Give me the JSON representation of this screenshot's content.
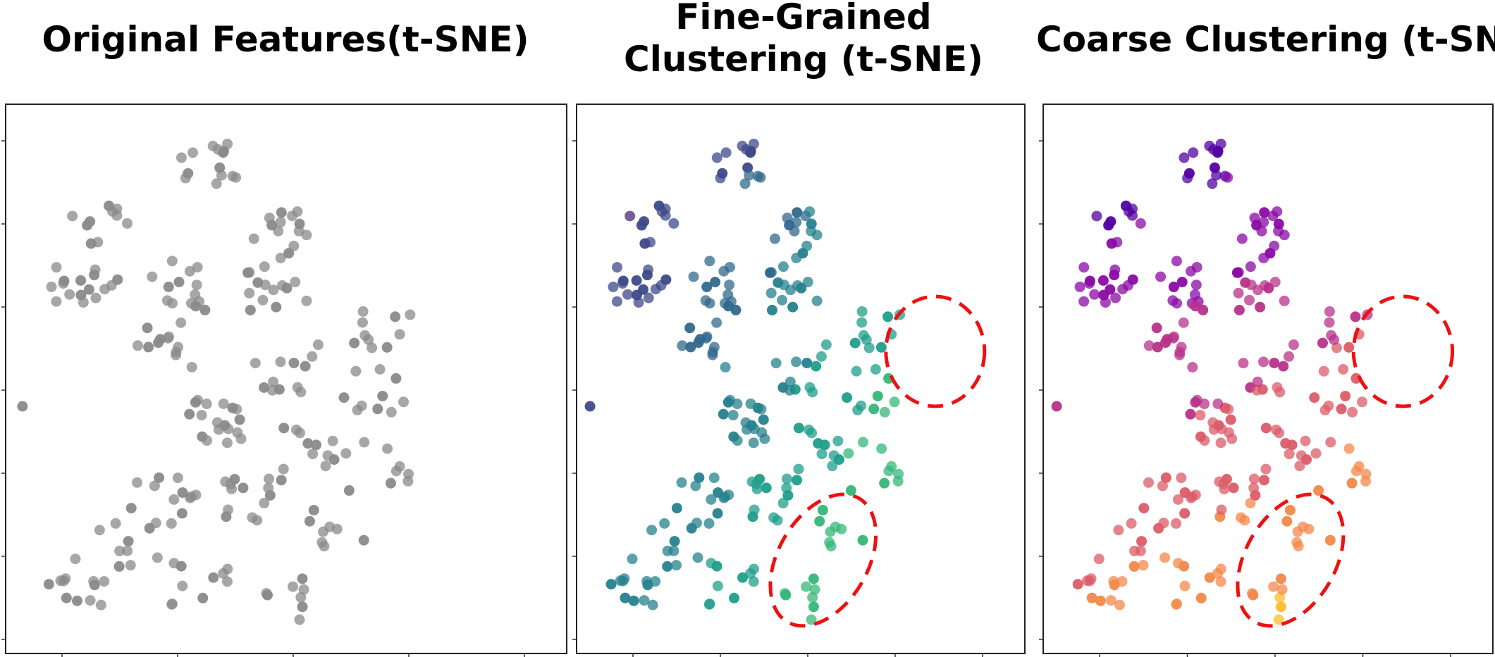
{
  "chart_data": [
    {
      "type": "scatter",
      "title": "Original Features(t-SNE)",
      "colors": {
        "point": "#8a8a8a"
      },
      "n_points": 230
    },
    {
      "type": "scatter",
      "title": "Fine-Grained Clustering (t-SNE)",
      "colors": {
        "palette": "viridis",
        "highlight_circle": "#ee1111"
      },
      "n_points": 230
    },
    {
      "type": "scatter",
      "title": "Coarse Clustering (t-SNE)",
      "colors": {
        "palette": "plasma",
        "highlight_circle": "#ee1111"
      },
      "n_points": 230
    }
  ]
}
